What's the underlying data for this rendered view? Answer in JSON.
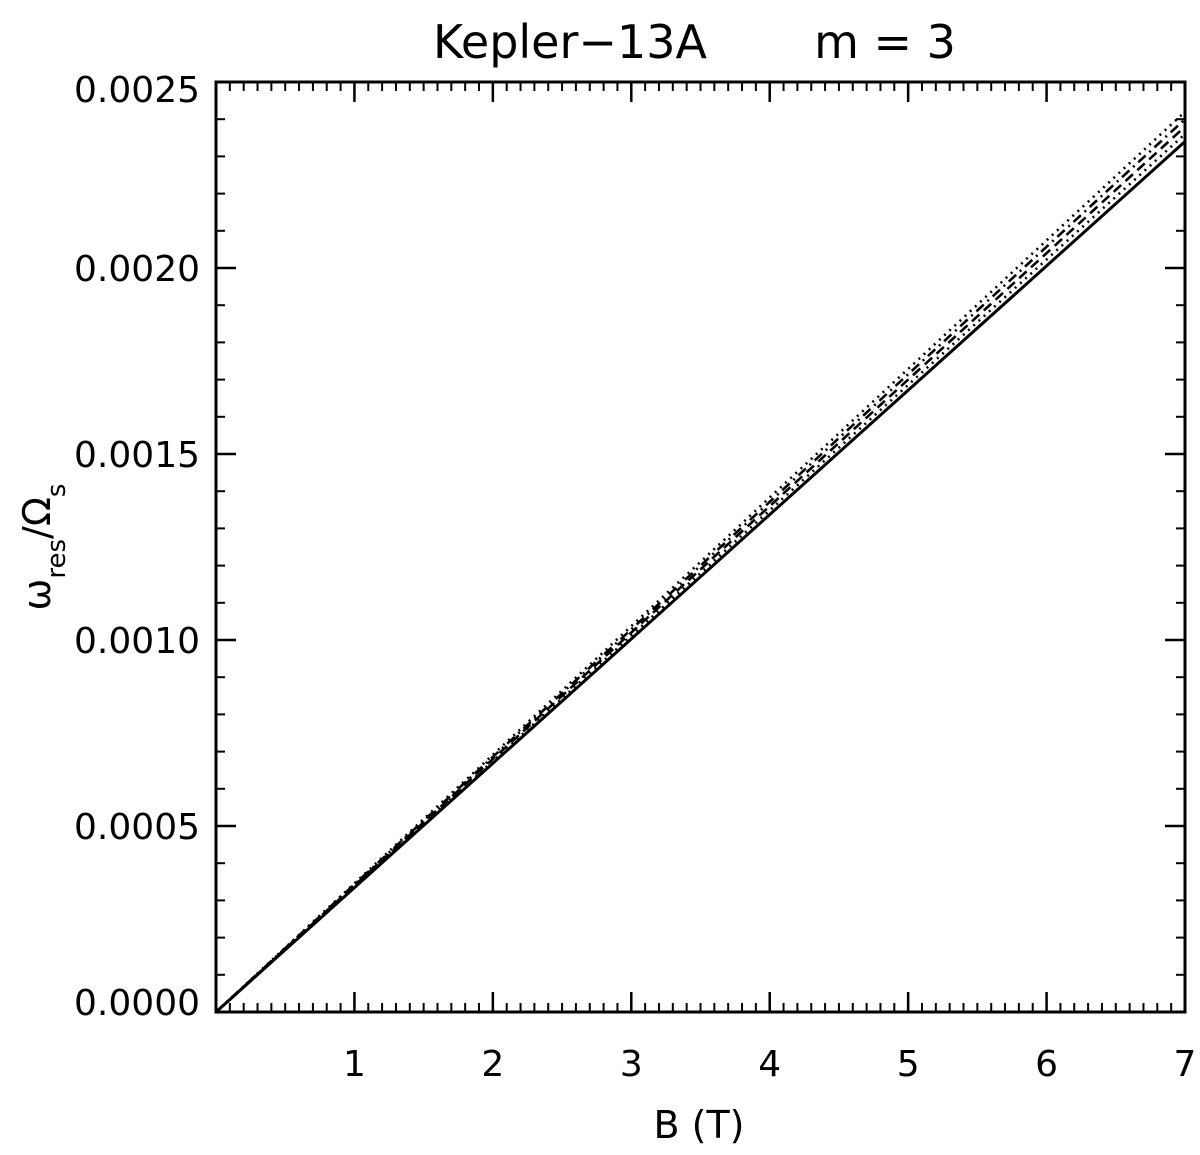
{
  "chart_data": {
    "type": "line",
    "title_parts": [
      "Kepler−13A",
      "m = 3"
    ],
    "xlabel": "B (T)",
    "ylabel": {
      "base": "ω",
      "base_sub": "res",
      "sep": "/",
      "denom": "Ω",
      "denom_sub": "s"
    },
    "xlim": [
      0,
      7
    ],
    "ylim": [
      0,
      0.0025
    ],
    "xticks": [
      {
        "value": 1,
        "label": "1"
      },
      {
        "value": 2,
        "label": "2"
      },
      {
        "value": 3,
        "label": "3"
      },
      {
        "value": 4,
        "label": "4"
      },
      {
        "value": 5,
        "label": "5"
      },
      {
        "value": 6,
        "label": "6"
      },
      {
        "value": 7,
        "label": "7"
      }
    ],
    "yticks": [
      {
        "value": 0,
        "label": "0.0000"
      },
      {
        "value": 0.0005,
        "label": "0.0005"
      },
      {
        "value": 0.001,
        "label": "0.0010"
      },
      {
        "value": 0.0015,
        "label": "0.0015"
      },
      {
        "value": 0.002,
        "label": "0.0020"
      },
      {
        "value": 0.0025,
        "label": "0.0025"
      }
    ],
    "x_minor_step": 0.1,
    "y_minor_step": 0.0001,
    "grid": false,
    "series": [
      {
        "style": "solid",
        "color": "#000000",
        "x": [
          0,
          7
        ],
        "y": [
          0,
          0.00234
        ]
      },
      {
        "style": "dotted",
        "color": "#000000",
        "x": [
          0,
          7
        ],
        "y": [
          0,
          0.00236
        ]
      },
      {
        "style": "dashed",
        "color": "#000000",
        "x": [
          0,
          7
        ],
        "y": [
          0,
          0.00238
        ]
      },
      {
        "style": "dashdot",
        "color": "#000000",
        "x": [
          0,
          7
        ],
        "y": [
          0,
          0.0024
        ]
      },
      {
        "style": "dotted",
        "color": "#000000",
        "x": [
          0,
          7
        ],
        "y": [
          0,
          0.00242
        ]
      }
    ]
  }
}
